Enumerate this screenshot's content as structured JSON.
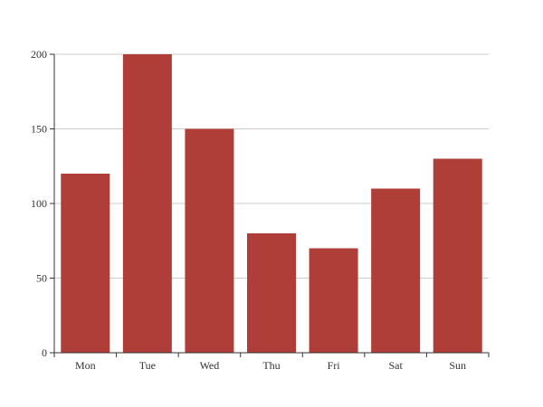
{
  "chart_data": {
    "type": "bar",
    "categories": [
      "Mon",
      "Tue",
      "Wed",
      "Thu",
      "Fri",
      "Sat",
      "Sun"
    ],
    "values": [
      120,
      200,
      150,
      80,
      70,
      110,
      130
    ],
    "title": "",
    "xlabel": "",
    "ylabel": "",
    "ylim": [
      0,
      200
    ],
    "yticks": [
      0,
      50,
      100,
      150,
      200
    ],
    "grid": true,
    "legend": "none",
    "bar_color": "#b03e38"
  }
}
